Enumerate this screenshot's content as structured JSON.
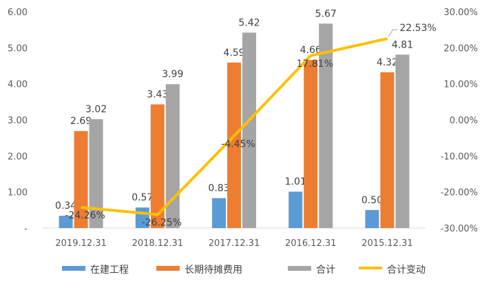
{
  "chart_data": {
    "type": "bar",
    "categories": [
      "2019.12.31",
      "2018.12.31",
      "2017.12.31",
      "2016.12.31",
      "2015.12.31"
    ],
    "series": [
      {
        "name": "在建工程",
        "type": "bar",
        "axis": "left",
        "color": "#5B9BD5",
        "values": [
          0.34,
          0.57,
          0.83,
          1.01,
          0.5
        ],
        "labels": [
          "0.34",
          "0.57",
          "0.83",
          "1.01",
          "0.50"
        ]
      },
      {
        "name": "长期待摊费用",
        "type": "bar",
        "axis": "left",
        "color": "#ED7D31",
        "values": [
          2.69,
          3.43,
          4.59,
          4.66,
          4.32
        ],
        "labels": [
          "2.69",
          "3.43",
          "4.59",
          "4.66",
          "4.32"
        ]
      },
      {
        "name": "合计",
        "type": "bar",
        "axis": "left",
        "color": "#A5A5A5",
        "values": [
          3.02,
          3.99,
          5.42,
          5.67,
          4.81
        ],
        "labels": [
          "3.02",
          "3.99",
          "5.42",
          "5.67",
          "4.81"
        ]
      },
      {
        "name": "合计变动",
        "type": "line",
        "axis": "right",
        "color": "#FFC000",
        "values": [
          -24.26,
          -26.25,
          -4.45,
          17.81,
          22.53
        ],
        "labels": [
          "-24.26%",
          "-26.25%",
          "-4.45%",
          "17.81%",
          "22.53%"
        ]
      }
    ],
    "y_left": {
      "min": 0,
      "max": 6,
      "ticks": [
        "-",
        "1.00",
        "2.00",
        "3.00",
        "4.00",
        "5.00",
        "6.00"
      ]
    },
    "y_right": {
      "min": -30,
      "max": 30,
      "ticks": [
        "-30.00%",
        "-20.00%",
        "-10.00%",
        "0.00%",
        "10.00%",
        "20.00%",
        "30.00%"
      ]
    },
    "legend_position": "bottom",
    "grid": false
  }
}
